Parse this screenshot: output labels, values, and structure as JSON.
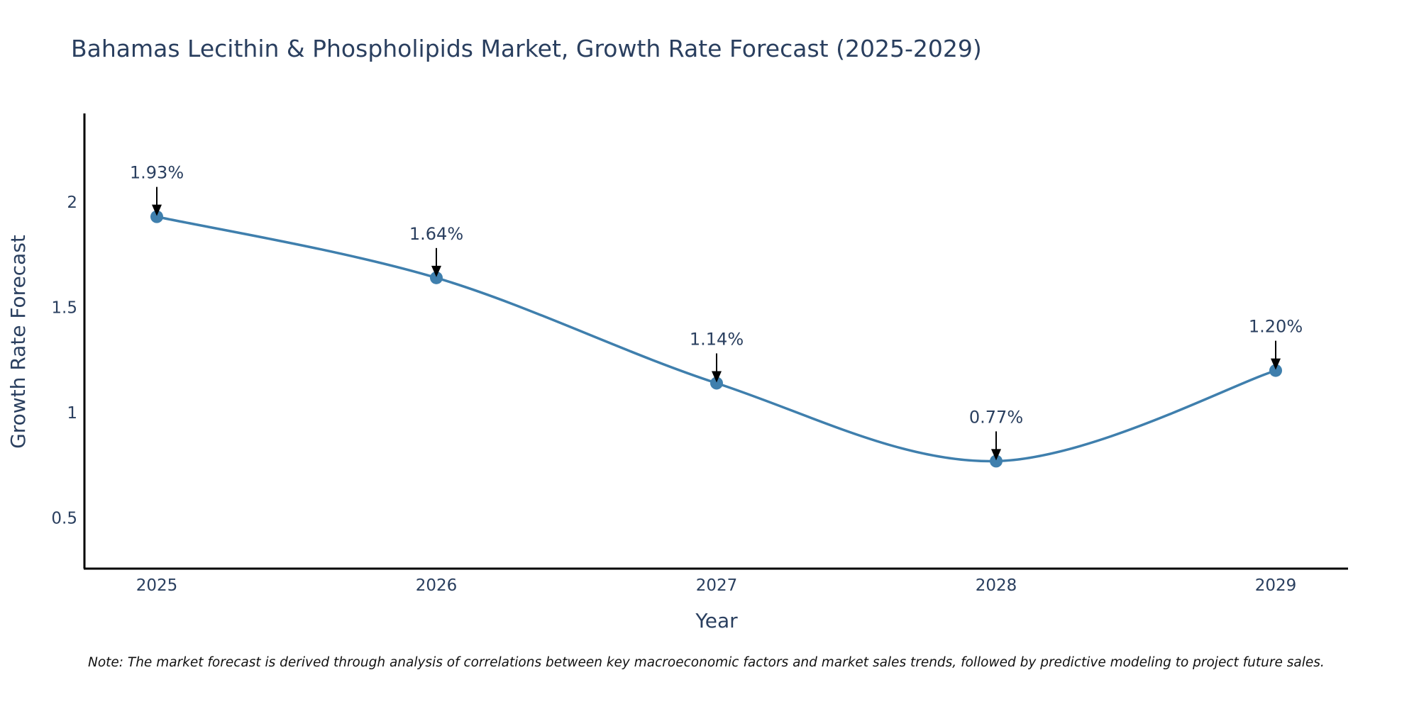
{
  "chart_data": {
    "type": "line",
    "title": "Bahamas Lecithin & Phospholipids Market, Growth Rate Forecast (2025-2029)",
    "xlabel": "Year",
    "ylabel": "Growth Rate Forecast",
    "categories": [
      "2025",
      "2026",
      "2027",
      "2028",
      "2029"
    ],
    "values": [
      1.93,
      1.64,
      1.14,
      0.77,
      1.2
    ],
    "data_labels": [
      "1.93%",
      "1.64%",
      "1.14%",
      "0.77%",
      "1.20%"
    ],
    "y_ticks": [
      0.5,
      1,
      1.5,
      2
    ],
    "y_tick_labels": [
      "0.5",
      "1",
      "1.5",
      "2"
    ],
    "ylim": [
      0.26,
      2.42
    ],
    "grid": false,
    "line_shape": "spline",
    "colors": {
      "line": "#3f7fad",
      "marker": "#3f7fad",
      "arrow": "#000000",
      "axis": "#000000",
      "text": "#2a3f5f"
    },
    "note": "Note: The market forecast is derived through analysis of correlations between key macroeconomic factors and market sales trends, followed by predictive modeling to project future sales."
  }
}
